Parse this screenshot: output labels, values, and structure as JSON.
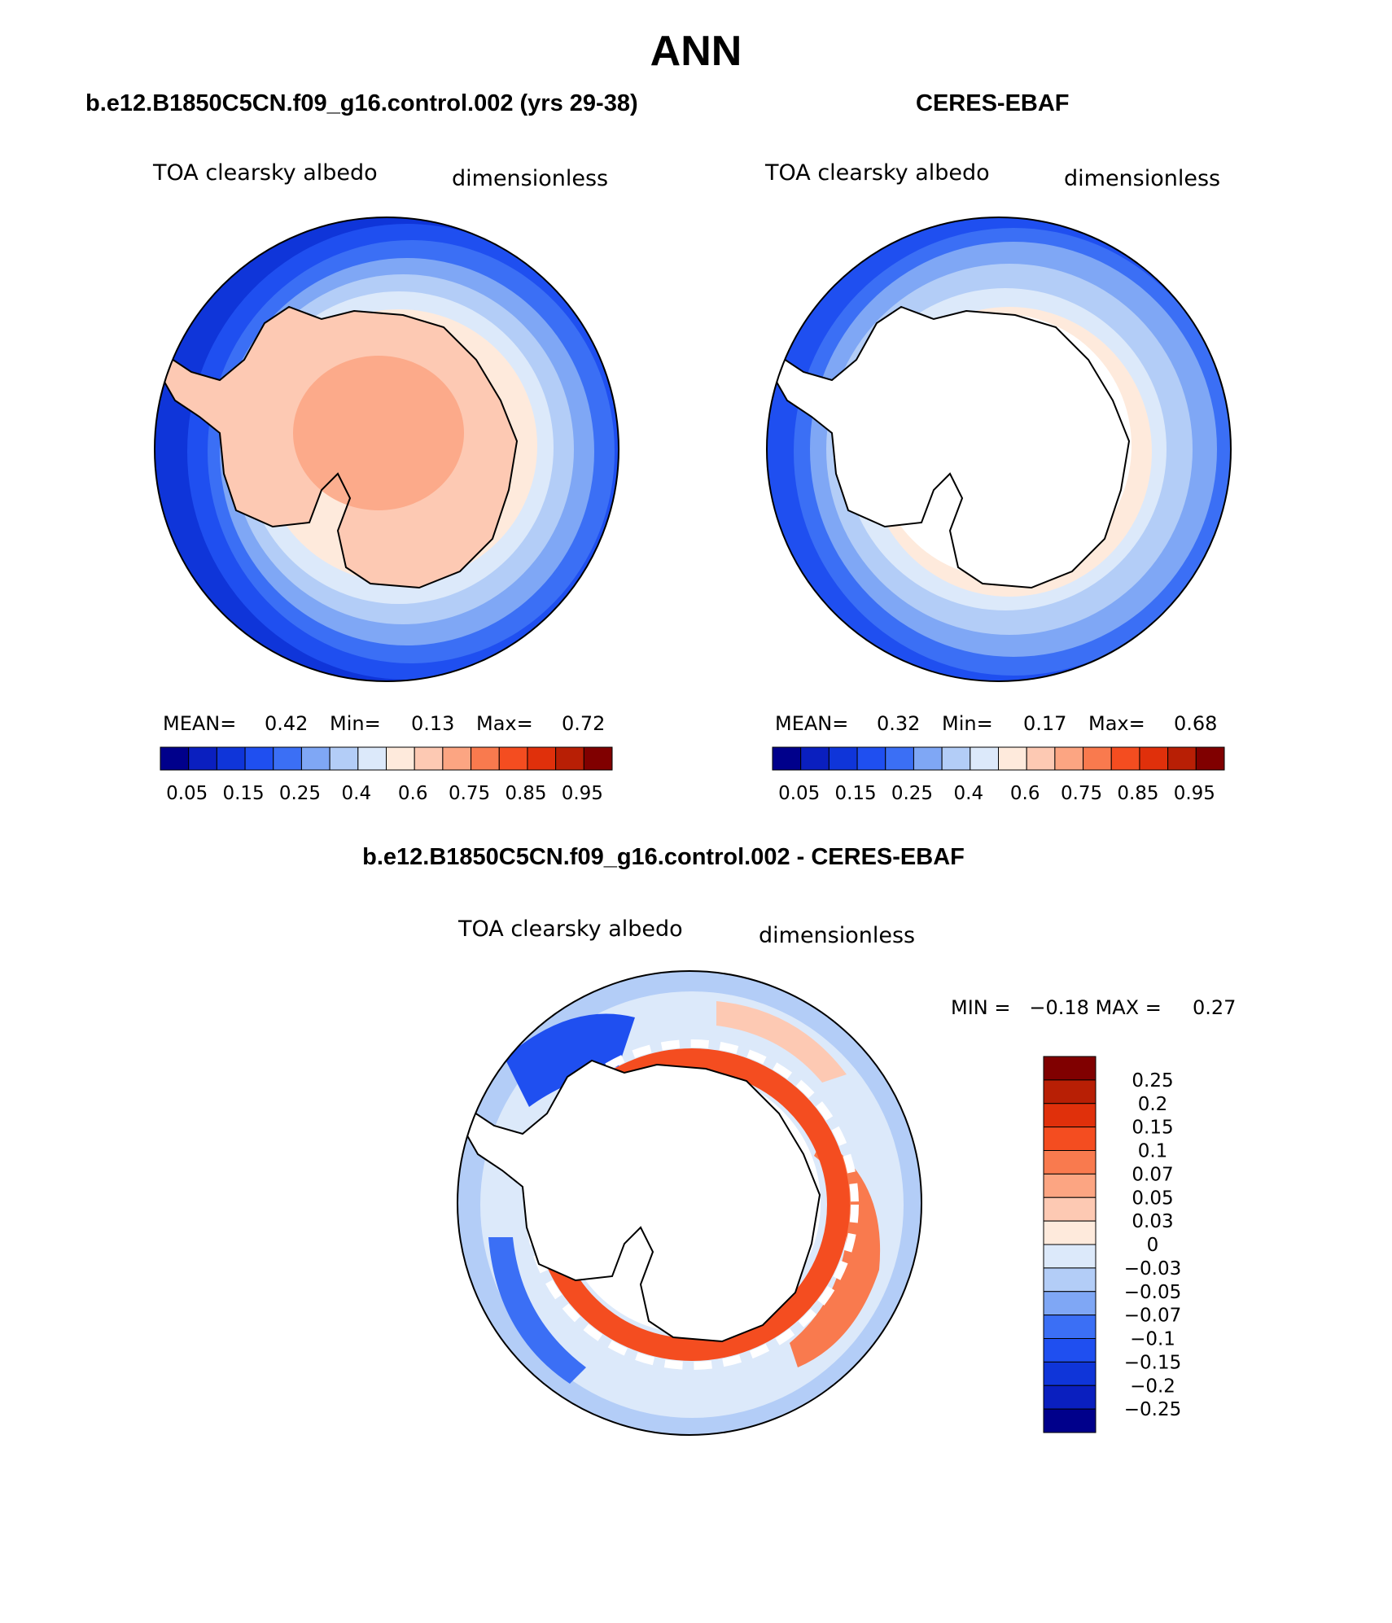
{
  "title": "ANN",
  "colors": {
    "seq": [
      "#00008b",
      "#0a1fbf",
      "#0f35d9",
      "#1f4ff0",
      "#3b6ff5",
      "#7fa7f5",
      "#b3cdf7",
      "#dce9fa",
      "#feeadc",
      "#fdc9b3",
      "#fca582",
      "#f97a4e",
      "#f44d20",
      "#e0300b",
      "#b81f05",
      "#800000"
    ],
    "diff": [
      "#00008b",
      "#0a1fbf",
      "#0f35d9",
      "#1f4ff0",
      "#3b6ff5",
      "#7fa7f5",
      "#b3cdf7",
      "#dce9fa",
      "#feeadc",
      "#fdc9b3",
      "#fca582",
      "#f97a4e",
      "#f44d20",
      "#e0300b",
      "#b81f05",
      "#800000"
    ]
  },
  "panels": {
    "model": {
      "title": "b.e12.B1850C5CN.f09_g16.control.002 (yrs 29-38)",
      "variable": "TOA clearsky albedo",
      "units": "dimensionless",
      "stats": {
        "mean_label": "MEAN=",
        "mean": "0.42",
        "min_label": "Min=",
        "min": "0.13",
        "max_label": "Max=",
        "max": "0.72"
      },
      "colorbar_labels": [
        "0.05",
        "0.15",
        "0.25",
        "0.4",
        "0.6",
        "0.75",
        "0.85",
        "0.95"
      ]
    },
    "obs": {
      "title": "CERES-EBAF",
      "variable": "TOA clearsky albedo",
      "units": "dimensionless",
      "stats": {
        "mean_label": "MEAN=",
        "mean": "0.32",
        "min_label": "Min=",
        "min": "0.17",
        "max_label": "Max=",
        "max": "0.68"
      },
      "colorbar_labels": [
        "0.05",
        "0.15",
        "0.25",
        "0.4",
        "0.6",
        "0.75",
        "0.85",
        "0.95"
      ]
    },
    "diff": {
      "title": "b.e12.B1850C5CN.f09_g16.control.002 - CERES-EBAF",
      "variable": "TOA clearsky albedo",
      "units": "dimensionless",
      "minmax": "MIN =   −0.18 MAX =     0.27",
      "colorbar_labels": [
        "0.25",
        "0.2",
        "0.15",
        "0.1",
        "0.07",
        "0.05",
        "0.03",
        "0",
        "−0.03",
        "−0.05",
        "−0.07",
        "−0.1",
        "−0.15",
        "−0.2",
        "−0.25"
      ]
    }
  }
}
